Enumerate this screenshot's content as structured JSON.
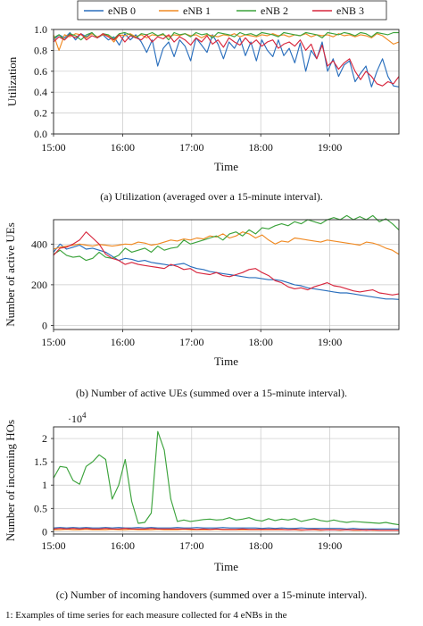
{
  "legend": {
    "entries": [
      {
        "name": "eNB 0",
        "color": "#2a6fbd"
      },
      {
        "name": "eNB 1",
        "color": "#f08a23"
      },
      {
        "name": "eNB 2",
        "color": "#3ca33c"
      },
      {
        "name": "eNB 3",
        "color": "#d7263d"
      }
    ]
  },
  "captions": {
    "a": "(a) Utilization (averaged over a 15-minute interval).",
    "b": "(b) Number of active UEs (summed over a 15-minute interval).",
    "c": "(c) Number of incoming handovers (summed over a 15-minute interval).",
    "footer": "1: Examples of time series for each measure collected for 4 eNBs in the"
  },
  "chart_data": [
    {
      "type": "line",
      "xlabel": "Time",
      "ylabel": "Utilization",
      "x_ticks": [
        "15:00",
        "16:00",
        "17:00",
        "18:00",
        "19:00"
      ],
      "y_ticks": [
        "0.0",
        "0.2",
        "0.4",
        "0.6",
        "0.8",
        "1.0"
      ],
      "xlim": [
        0,
        5
      ],
      "ylim": [
        0,
        1
      ],
      "grid": true,
      "series": [
        {
          "name": "eNB 0",
          "color": "#2a6fbd",
          "values": [
            0.9,
            0.95,
            0.92,
            0.97,
            0.9,
            0.96,
            0.93,
            0.97,
            0.92,
            0.95,
            0.9,
            0.93,
            0.85,
            0.96,
            0.9,
            0.95,
            0.88,
            0.78,
            0.9,
            0.65,
            0.82,
            0.88,
            0.74,
            0.9,
            0.84,
            0.7,
            0.92,
            0.85,
            0.78,
            0.95,
            0.86,
            0.72,
            0.88,
            0.82,
            0.92,
            0.75,
            0.88,
            0.7,
            0.9,
            0.8,
            0.74,
            0.9,
            0.75,
            0.82,
            0.68,
            0.87,
            0.6,
            0.8,
            0.72,
            0.88,
            0.6,
            0.72,
            0.55,
            0.66,
            0.7,
            0.5,
            0.58,
            0.65,
            0.45,
            0.6,
            0.72,
            0.55,
            0.46,
            0.45
          ]
        },
        {
          "name": "eNB 1",
          "color": "#f08a23",
          "values": [
            0.95,
            0.8,
            0.95,
            0.93,
            0.96,
            0.95,
            0.92,
            0.96,
            0.93,
            0.95,
            0.94,
            0.88,
            0.95,
            0.94,
            0.96,
            0.93,
            0.95,
            0.92,
            0.95,
            0.94,
            0.95,
            0.93,
            0.95,
            0.94,
            0.96,
            0.94,
            0.95,
            0.92,
            0.95,
            0.94,
            0.93,
            0.95,
            0.94,
            0.96,
            0.93,
            0.95,
            0.94,
            0.93,
            0.95,
            0.94,
            0.96,
            0.94,
            0.95,
            0.93,
            0.95,
            0.94,
            0.96,
            0.93,
            0.95,
            0.94,
            0.95,
            0.93,
            0.96,
            0.94,
            0.95,
            0.93,
            0.95,
            0.94,
            0.92,
            0.96,
            0.94,
            0.9,
            0.86,
            0.88
          ]
        },
        {
          "name": "eNB 2",
          "color": "#3ca33c",
          "values": [
            0.92,
            0.95,
            0.9,
            0.96,
            0.94,
            0.9,
            0.95,
            0.97,
            0.92,
            0.96,
            0.95,
            0.91,
            0.96,
            0.97,
            0.95,
            0.92,
            0.96,
            0.95,
            0.97,
            0.94,
            0.96,
            0.9,
            0.97,
            0.95,
            0.96,
            0.93,
            0.97,
            0.95,
            0.96,
            0.92,
            0.97,
            0.96,
            0.95,
            0.93,
            0.97,
            0.95,
            0.96,
            0.94,
            0.97,
            0.96,
            0.95,
            0.93,
            0.97,
            0.96,
            0.95,
            0.94,
            0.97,
            0.96,
            0.95,
            0.92,
            0.97,
            0.96,
            0.95,
            0.97,
            0.96,
            0.94,
            0.97,
            0.96,
            0.93,
            0.97,
            0.96,
            0.95,
            0.97,
            0.97
          ]
        },
        {
          "name": "eNB 3",
          "color": "#d7263d",
          "values": [
            0.88,
            0.93,
            0.9,
            0.95,
            0.92,
            0.96,
            0.9,
            0.94,
            0.92,
            0.96,
            0.93,
            0.9,
            0.95,
            0.88,
            0.94,
            0.92,
            0.9,
            0.95,
            0.88,
            0.93,
            0.91,
            0.95,
            0.88,
            0.93,
            0.9,
            0.85,
            0.92,
            0.88,
            0.94,
            0.86,
            0.9,
            0.83,
            0.92,
            0.88,
            0.85,
            0.92,
            0.86,
            0.9,
            0.84,
            0.88,
            0.9,
            0.82,
            0.86,
            0.88,
            0.84,
            0.9,
            0.8,
            0.86,
            0.72,
            0.85,
            0.65,
            0.7,
            0.62,
            0.68,
            0.72,
            0.6,
            0.52,
            0.6,
            0.55,
            0.48,
            0.46,
            0.5,
            0.48,
            0.55
          ]
        }
      ]
    },
    {
      "type": "line",
      "xlabel": "Time",
      "ylabel": "Number of active UEs",
      "x_ticks": [
        "15:00",
        "16:00",
        "17:00",
        "18:00",
        "19:00"
      ],
      "y_ticks": [
        "0",
        "200",
        "400"
      ],
      "xlim": [
        0,
        5
      ],
      "ylim": [
        -20,
        520
      ],
      "grid": true,
      "series": [
        {
          "name": "eNB 0",
          "color": "#2a6fbd",
          "values": [
            360,
            400,
            375,
            385,
            395,
            375,
            380,
            370,
            360,
            340,
            320,
            330,
            325,
            315,
            320,
            310,
            305,
            300,
            295,
            300,
            305,
            290,
            280,
            275,
            265,
            260,
            255,
            250,
            245,
            240,
            235,
            235,
            230,
            225,
            225,
            220,
            210,
            200,
            195,
            185,
            180,
            175,
            170,
            165,
            160,
            160,
            155,
            150,
            145,
            140,
            135,
            130,
            130,
            128
          ]
        },
        {
          "name": "eNB 1",
          "color": "#f08a23",
          "values": [
            375,
            385,
            390,
            395,
            400,
            395,
            390,
            398,
            395,
            390,
            395,
            400,
            398,
            410,
            405,
            395,
            400,
            410,
            420,
            415,
            425,
            420,
            430,
            425,
            440,
            435,
            450,
            430,
            440,
            460,
            450,
            430,
            445,
            420,
            400,
            415,
            410,
            430,
            425,
            420,
            415,
            410,
            420,
            415,
            410,
            405,
            400,
            395,
            410,
            405,
            395,
            380,
            370,
            350
          ]
        },
        {
          "name": "eNB 2",
          "color": "#3ca33c",
          "values": [
            350,
            370,
            345,
            335,
            340,
            320,
            330,
            360,
            335,
            330,
            345,
            380,
            360,
            370,
            380,
            360,
            390,
            370,
            380,
            385,
            420,
            400,
            410,
            420,
            430,
            440,
            420,
            450,
            460,
            440,
            470,
            450,
            480,
            475,
            490,
            500,
            490,
            510,
            500,
            520,
            510,
            500,
            520,
            530,
            520,
            540,
            520,
            535,
            520,
            540,
            510,
            525,
            500,
            470
          ]
        },
        {
          "name": "eNB 3",
          "color": "#d7263d",
          "values": [
            345,
            380,
            385,
            400,
            420,
            460,
            430,
            400,
            350,
            330,
            320,
            300,
            310,
            300,
            295,
            290,
            285,
            280,
            300,
            290,
            275,
            280,
            260,
            255,
            250,
            260,
            245,
            240,
            250,
            260,
            275,
            280,
            260,
            245,
            220,
            210,
            190,
            180,
            185,
            175,
            190,
            200,
            210,
            195,
            190,
            180,
            170,
            165,
            170,
            175,
            160,
            155,
            150,
            155
          ]
        }
      ]
    },
    {
      "type": "line",
      "xlabel": "Time",
      "ylabel": "Number of incoming HOs",
      "y_multiplier": "·10",
      "y_multiplier_exp": "4",
      "x_ticks": [
        "15:00",
        "16:00",
        "17:00",
        "18:00",
        "19:00"
      ],
      "y_ticks": [
        "0",
        "0.5",
        "1",
        "1.5",
        "2"
      ],
      "xlim": [
        0,
        5
      ],
      "ylim": [
        -0.05,
        2.25
      ],
      "grid": true,
      "series": [
        {
          "name": "eNB 0",
          "color": "#2a6fbd",
          "values": [
            0.08,
            0.09,
            0.08,
            0.09,
            0.08,
            0.09,
            0.08,
            0.08,
            0.09,
            0.08,
            0.09,
            0.08,
            0.08,
            0.09,
            0.08,
            0.09,
            0.08,
            0.08,
            0.08,
            0.09,
            0.08,
            0.08,
            0.09,
            0.08,
            0.08,
            0.08,
            0.09,
            0.08,
            0.08,
            0.08,
            0.08,
            0.08,
            0.07,
            0.08,
            0.07,
            0.08,
            0.07,
            0.07,
            0.08,
            0.07,
            0.07,
            0.07,
            0.07,
            0.07,
            0.07,
            0.06,
            0.07,
            0.06,
            0.06,
            0.06,
            0.06,
            0.06,
            0.06,
            0.06
          ]
        },
        {
          "name": "eNB 1",
          "color": "#f08a23",
          "values": [
            0.04,
            0.04,
            0.05,
            0.04,
            0.04,
            0.05,
            0.04,
            0.04,
            0.04,
            0.05,
            0.04,
            0.04,
            0.05,
            0.04,
            0.04,
            0.04,
            0.05,
            0.04,
            0.04,
            0.04,
            0.05,
            0.04,
            0.04,
            0.04,
            0.04,
            0.05,
            0.04,
            0.04,
            0.04,
            0.04,
            0.04,
            0.04,
            0.04,
            0.04,
            0.04,
            0.04,
            0.04,
            0.04,
            0.03,
            0.04,
            0.04,
            0.03,
            0.04,
            0.04,
            0.03,
            0.04,
            0.03,
            0.03,
            0.04,
            0.03,
            0.03,
            0.03,
            0.03,
            0.03
          ]
        },
        {
          "name": "eNB 2",
          "color": "#3ca33c",
          "values": [
            1.15,
            1.4,
            1.38,
            1.1,
            1.02,
            1.4,
            1.5,
            1.65,
            1.55,
            0.7,
            1.0,
            1.55,
            0.65,
            0.18,
            0.2,
            0.4,
            2.15,
            1.75,
            0.7,
            0.22,
            0.25,
            0.22,
            0.24,
            0.26,
            0.27,
            0.25,
            0.26,
            0.3,
            0.25,
            0.27,
            0.3,
            0.25,
            0.23,
            0.28,
            0.24,
            0.27,
            0.25,
            0.28,
            0.22,
            0.25,
            0.28,
            0.24,
            0.22,
            0.25,
            0.22,
            0.2,
            0.22,
            0.21,
            0.2,
            0.19,
            0.18,
            0.2,
            0.17,
            0.15
          ]
        },
        {
          "name": "eNB 3",
          "color": "#d7263d",
          "values": [
            0.06,
            0.07,
            0.06,
            0.07,
            0.06,
            0.07,
            0.06,
            0.06,
            0.07,
            0.06,
            0.06,
            0.07,
            0.06,
            0.06,
            0.06,
            0.07,
            0.06,
            0.06,
            0.06,
            0.06,
            0.06,
            0.06,
            0.05,
            0.06,
            0.05,
            0.06,
            0.05,
            0.05,
            0.05,
            0.06,
            0.05,
            0.05,
            0.05,
            0.05,
            0.05,
            0.05,
            0.04,
            0.05,
            0.04,
            0.04,
            0.05,
            0.04,
            0.04,
            0.04,
            0.04,
            0.04,
            0.04,
            0.04,
            0.03,
            0.04,
            0.03,
            0.03,
            0.03,
            0.03
          ]
        }
      ]
    }
  ]
}
